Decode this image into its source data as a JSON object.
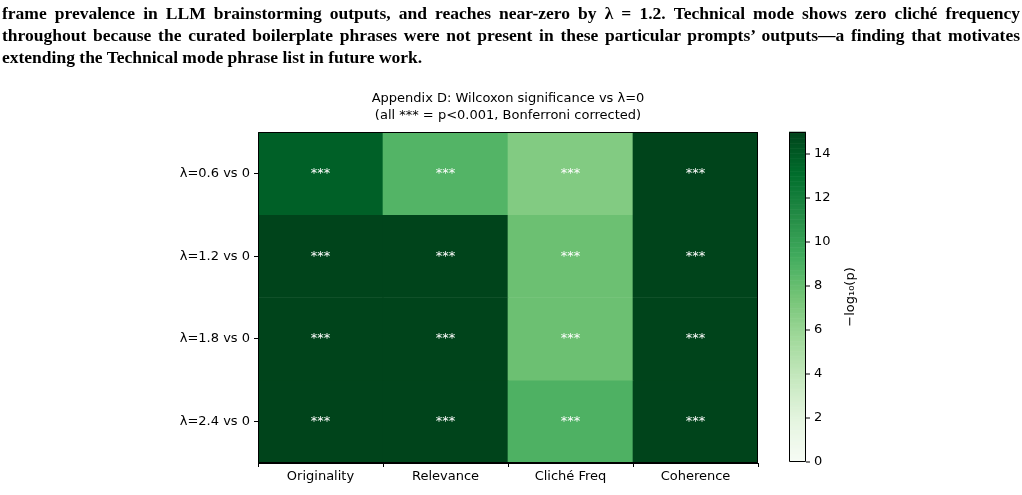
{
  "chart_data": {
    "type": "heatmap",
    "title": "Appendix D: Wilcoxon significance vs λ=0",
    "subtitle": "(all *** = p<0.001, Bonferroni corrected)",
    "categories": [
      "Originality",
      "Relevance",
      "Cliché Freq",
      "Coherence"
    ],
    "y_categories": [
      "λ=0.6 vs 0",
      "λ=1.2 vs 0",
      "λ=1.8 vs 0",
      "λ=2.4 vs 0"
    ],
    "cells": [
      [
        13.7,
        8.7,
        6.9,
        15
      ],
      [
        15,
        15,
        7.8,
        15
      ],
      [
        15,
        15,
        7.8,
        15
      ],
      [
        15,
        15,
        8.9,
        15
      ]
    ],
    "cell_labels": [
      [
        "***",
        "***",
        "***",
        "***"
      ],
      [
        "***",
        "***",
        "***",
        "***"
      ],
      [
        "***",
        "***",
        "***",
        "***"
      ],
      [
        "***",
        "***",
        "***",
        "***"
      ]
    ],
    "clim": [
      0,
      15
    ],
    "cticks": [
      0,
      2,
      4,
      6,
      8,
      10,
      12,
      14
    ],
    "clabel": "−log₁₀(p)",
    "annotations": [
      "frame prevalence in LLM brainstorming outputs, and reaches near-zero by λ = 1.2. Technical mode shows zero cliché frequency",
      "throughout because the curated boilerplate phrases were not present in these particular prompts’ outputs—a finding that motivates",
      "extending the Technical mode phrase list in future work."
    ]
  }
}
